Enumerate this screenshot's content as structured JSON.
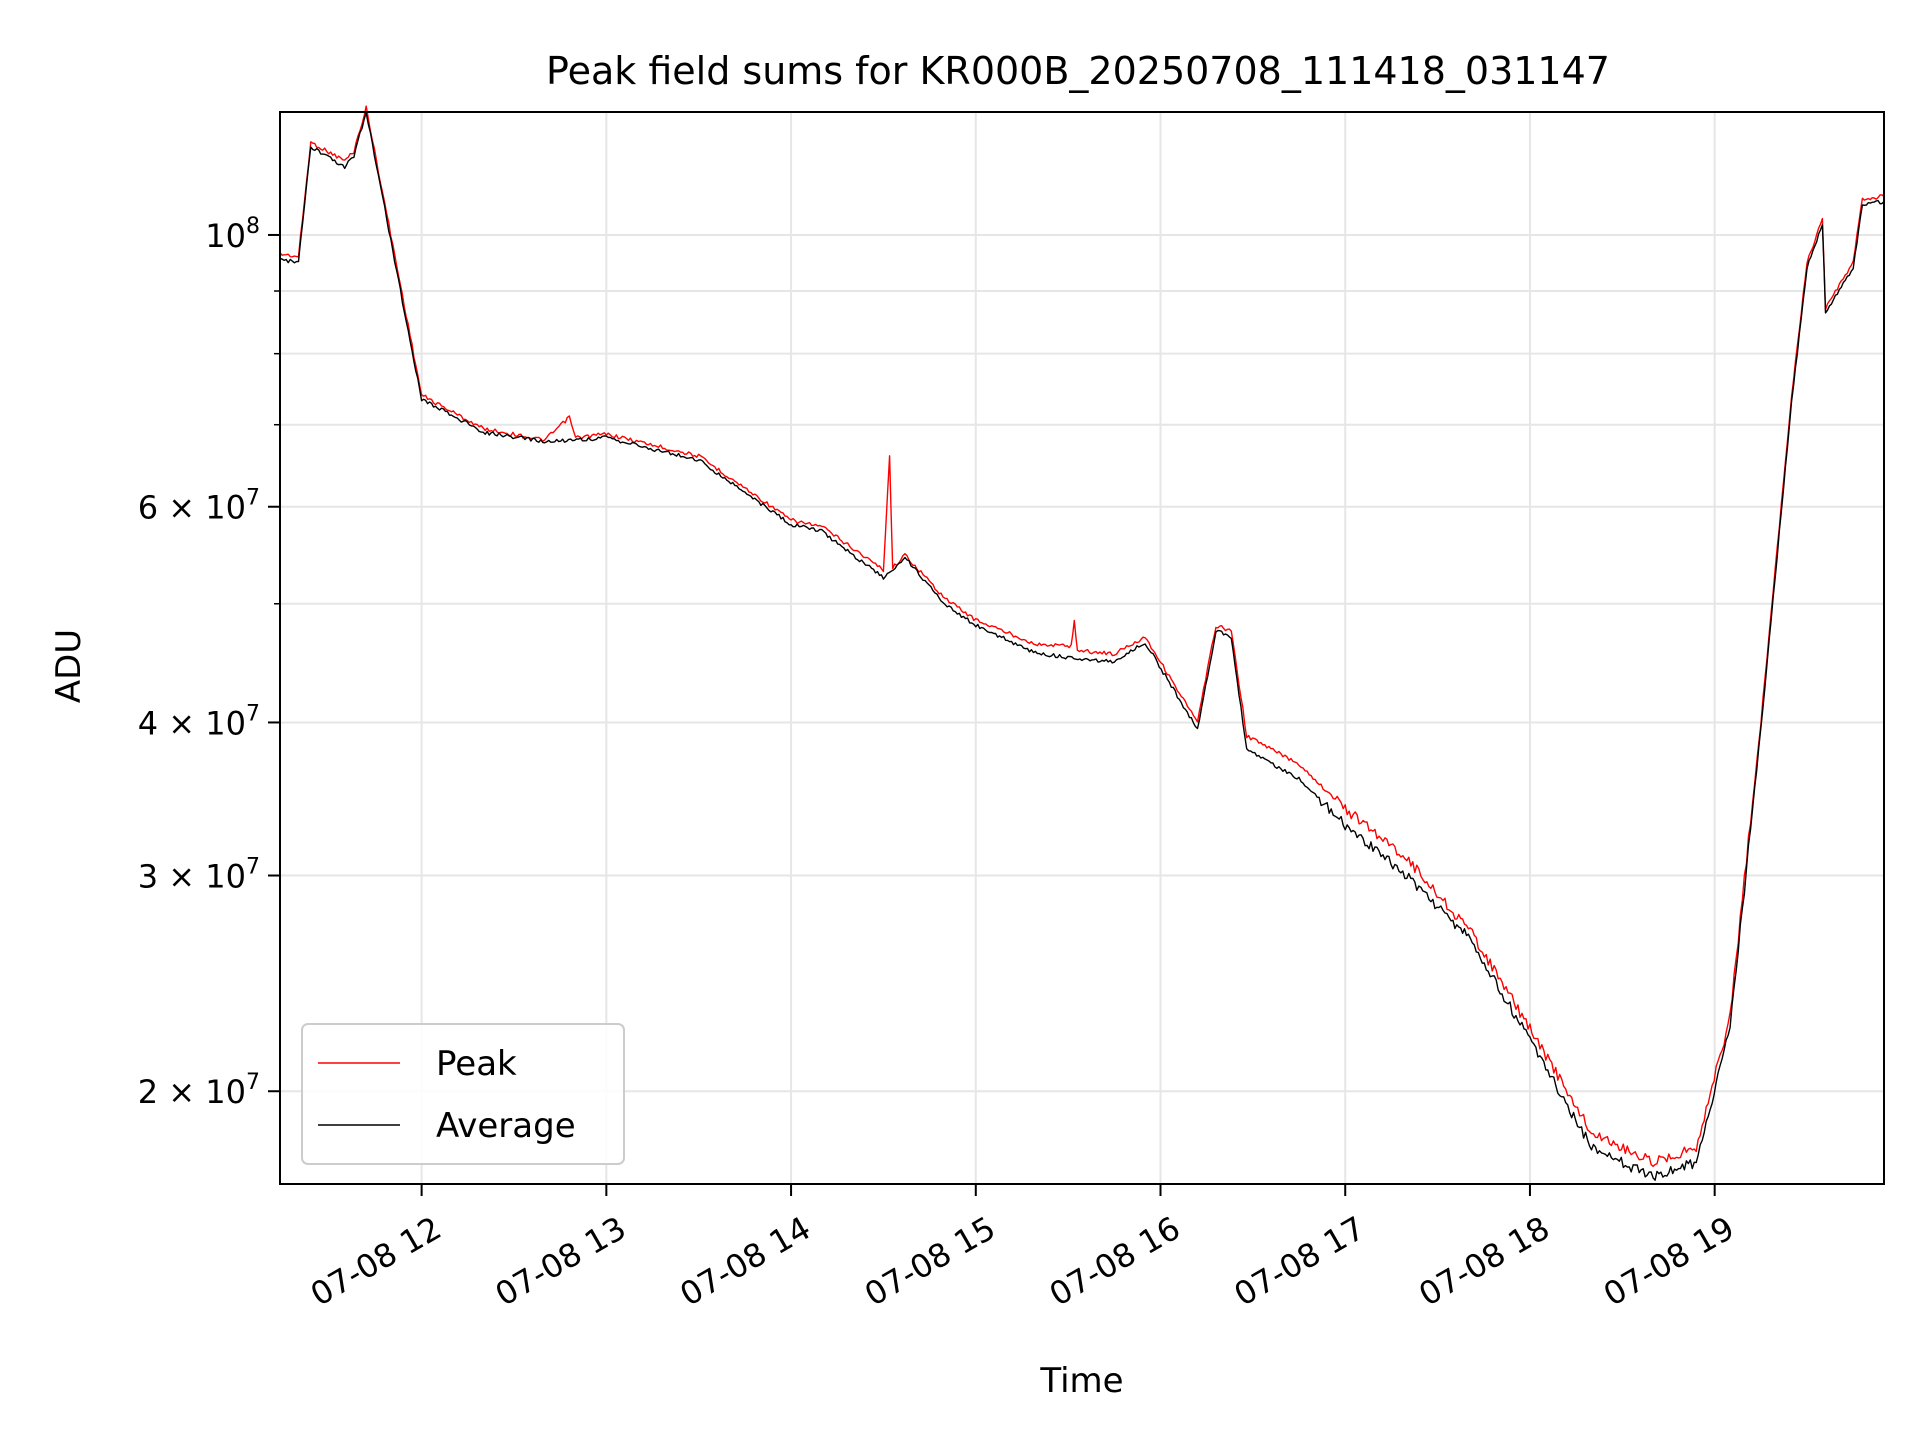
{
  "chart_data": {
    "type": "line",
    "title": "Peak field sums for KR000B_20250708_111418_031147",
    "xlabel": "Time",
    "ylabel": "ADU",
    "x_axis": {
      "type": "time",
      "range": [
        "2025-07-08 11:14",
        "2025-07-08 19:55"
      ],
      "ticks": [
        "2025-07-08 12:00",
        "2025-07-08 13:00",
        "2025-07-08 14:00",
        "2025-07-08 15:00",
        "2025-07-08 16:00",
        "2025-07-08 17:00",
        "2025-07-08 18:00",
        "2025-07-08 19:00"
      ],
      "tick_labels": [
        "07-08 12",
        "07-08 13",
        "07-08 14",
        "07-08 15",
        "07-08 16",
        "07-08 17",
        "07-08 18",
        "07-08 19"
      ],
      "tick_label_rotation": 30
    },
    "y_axis": {
      "scale": "log",
      "range": [
        16800000,
        126000000
      ],
      "ticks": [
        {
          "value": 20000000,
          "mantissa": "2",
          "exp": "7"
        },
        {
          "value": 30000000,
          "mantissa": "3",
          "exp": "7"
        },
        {
          "value": 40000000,
          "mantissa": "4",
          "exp": "7"
        },
        {
          "value": 60000000,
          "mantissa": "6",
          "exp": "7"
        },
        {
          "value": 100000000,
          "mantissa": "",
          "exp": "8"
        }
      ],
      "base_label": "10",
      "times_label": "×"
    },
    "grid": true,
    "legend": {
      "position": "lower-left",
      "entries": [
        "Peak",
        "Average"
      ]
    },
    "series": [
      {
        "name": "Peak",
        "color": "#ff0000",
        "points": [
          [
            "2025-07-08 11:14",
            96500000
          ],
          [
            "2025-07-08 11:20",
            96000000
          ],
          [
            "2025-07-08 11:24",
            119000000
          ],
          [
            "2025-07-08 11:35",
            115000000
          ],
          [
            "2025-07-08 11:38",
            117000000
          ],
          [
            "2025-07-08 11:42",
            127000000
          ],
          [
            "2025-07-08 11:50",
            100000000
          ],
          [
            "2025-07-08 11:55",
            86000000
          ],
          [
            "2025-07-08 12:00",
            74000000
          ],
          [
            "2025-07-08 12:20",
            69500000
          ],
          [
            "2025-07-08 12:40",
            68000000
          ],
          [
            "2025-07-08 12:48",
            71000000
          ],
          [
            "2025-07-08 12:50",
            68300000
          ],
          [
            "2025-07-08 13:00",
            68800000
          ],
          [
            "2025-07-08 13:30",
            66000000
          ],
          [
            "2025-07-08 14:00",
            58500000
          ],
          [
            "2025-07-08 14:10",
            57800000
          ],
          [
            "2025-07-08 14:30",
            53300000
          ],
          [
            "2025-07-08 14:32",
            66000000
          ],
          [
            "2025-07-08 14:33",
            53500000
          ],
          [
            "2025-07-08 14:37",
            54800000
          ],
          [
            "2025-07-08 14:50",
            50500000
          ],
          [
            "2025-07-08 15:00",
            48500000
          ],
          [
            "2025-07-08 15:20",
            46300000
          ],
          [
            "2025-07-08 15:31",
            46200000
          ],
          [
            "2025-07-08 15:32",
            48500000
          ],
          [
            "2025-07-08 15:33",
            45800000
          ],
          [
            "2025-07-08 15:45",
            45500000
          ],
          [
            "2025-07-08 15:55",
            47000000
          ],
          [
            "2025-07-08 16:12",
            40000000
          ],
          [
            "2025-07-08 16:18",
            48000000
          ],
          [
            "2025-07-08 16:23",
            47500000
          ],
          [
            "2025-07-08 16:28",
            39000000
          ],
          [
            "2025-07-08 16:45",
            37000000
          ],
          [
            "2025-07-08 17:00",
            34000000
          ],
          [
            "2025-07-08 17:20",
            31000000
          ],
          [
            "2025-07-08 17:35",
            28000000
          ],
          [
            "2025-07-08 17:40",
            27200000
          ],
          [
            "2025-07-08 18:00",
            22500000
          ],
          [
            "2025-07-08 18:20",
            18500000
          ],
          [
            "2025-07-08 18:40",
            17500000
          ],
          [
            "2025-07-08 18:54",
            18000000
          ],
          [
            "2025-07-08 19:05",
            23000000
          ],
          [
            "2025-07-08 19:15",
            40000000
          ],
          [
            "2025-07-08 19:25",
            74000000
          ],
          [
            "2025-07-08 19:30",
            95000000
          ],
          [
            "2025-07-08 19:35",
            103000000
          ],
          [
            "2025-07-08 19:36",
            87000000
          ],
          [
            "2025-07-08 19:45",
            95000000
          ],
          [
            "2025-07-08 19:48",
            107000000
          ],
          [
            "2025-07-08 19:55",
            107500000
          ]
        ]
      },
      {
        "name": "Average",
        "color": "#000000",
        "points": [
          [
            "2025-07-08 11:14",
            95500000
          ],
          [
            "2025-07-08 11:20",
            95000000
          ],
          [
            "2025-07-08 11:24",
            118000000
          ],
          [
            "2025-07-08 11:35",
            113500000
          ],
          [
            "2025-07-08 11:38",
            116000000
          ],
          [
            "2025-07-08 11:42",
            126000000
          ],
          [
            "2025-07-08 11:50",
            99000000
          ],
          [
            "2025-07-08 11:55",
            85000000
          ],
          [
            "2025-07-08 12:00",
            73500000
          ],
          [
            "2025-07-08 12:20",
            69000000
          ],
          [
            "2025-07-08 12:40",
            67800000
          ],
          [
            "2025-07-08 13:00",
            68300000
          ],
          [
            "2025-07-08 13:30",
            65500000
          ],
          [
            "2025-07-08 14:00",
            58000000
          ],
          [
            "2025-07-08 14:10",
            57300000
          ],
          [
            "2025-07-08 14:30",
            52500000
          ],
          [
            "2025-07-08 14:37",
            54500000
          ],
          [
            "2025-07-08 14:50",
            50000000
          ],
          [
            "2025-07-08 15:00",
            48000000
          ],
          [
            "2025-07-08 15:20",
            45500000
          ],
          [
            "2025-07-08 15:45",
            44800000
          ],
          [
            "2025-07-08 15:55",
            46500000
          ],
          [
            "2025-07-08 16:12",
            39500000
          ],
          [
            "2025-07-08 16:18",
            47500000
          ],
          [
            "2025-07-08 16:23",
            47000000
          ],
          [
            "2025-07-08 16:28",
            38000000
          ],
          [
            "2025-07-08 16:45",
            36000000
          ],
          [
            "2025-07-08 17:00",
            33000000
          ],
          [
            "2025-07-08 17:20",
            30000000
          ],
          [
            "2025-07-08 17:35",
            27500000
          ],
          [
            "2025-07-08 17:40",
            26800000
          ],
          [
            "2025-07-08 18:00",
            22000000
          ],
          [
            "2025-07-08 18:20",
            18000000
          ],
          [
            "2025-07-08 18:40",
            17000000
          ],
          [
            "2025-07-08 18:54",
            17500000
          ],
          [
            "2025-07-08 19:05",
            22500000
          ],
          [
            "2025-07-08 19:15",
            39500000
          ],
          [
            "2025-07-08 19:25",
            73000000
          ],
          [
            "2025-07-08 19:30",
            94000000
          ],
          [
            "2025-07-08 19:35",
            102000000
          ],
          [
            "2025-07-08 19:36",
            86500000
          ],
          [
            "2025-07-08 19:45",
            94000000
          ],
          [
            "2025-07-08 19:48",
            106000000
          ],
          [
            "2025-07-08 19:55",
            106500000
          ]
        ]
      }
    ]
  }
}
